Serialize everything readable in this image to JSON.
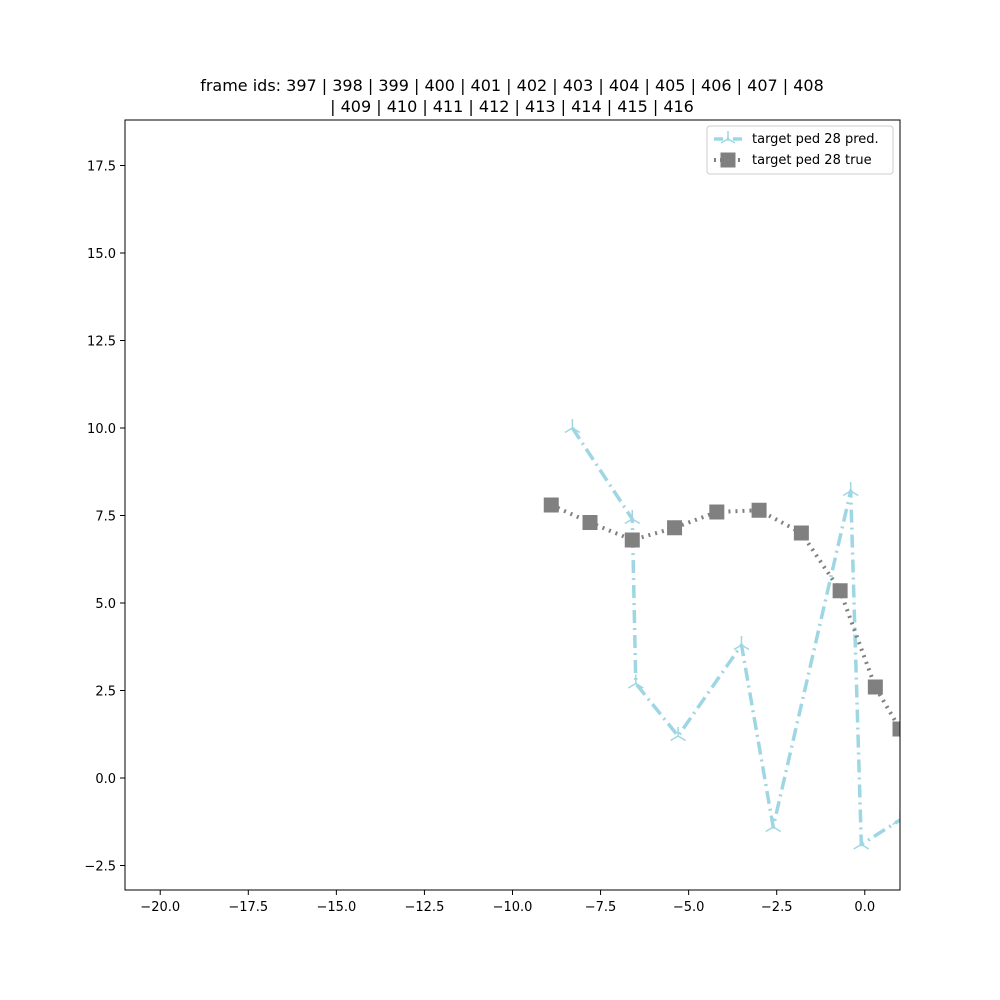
{
  "chart_data": {
    "type": "line",
    "title_lines": [
      "frame ids: 397 | 398 | 399 | 400 | 401 | 402 | 403 | 404 | 405 | 406 | 407 | 408",
      "| 409 | 410 | 411 | 412 | 413 | 414 | 415 | 416"
    ],
    "xlabel": "",
    "ylabel": "",
    "xlim": [
      -21.0,
      1.0
    ],
    "ylim": [
      -3.2,
      18.8
    ],
    "xticks": [
      -20.0,
      -17.5,
      -15.0,
      -12.5,
      -10.0,
      -7.5,
      -5.0,
      -2.5,
      0.0
    ],
    "xtick_labels": [
      "−20.0",
      "−17.5",
      "−15.0",
      "−12.5",
      "−10.0",
      "−7.5",
      "−5.0",
      "−2.5",
      "0.0"
    ],
    "yticks": [
      -2.5,
      0.0,
      2.5,
      5.0,
      7.5,
      10.0,
      12.5,
      15.0,
      17.5
    ],
    "ytick_labels": [
      "−2.5",
      "0.0",
      "2.5",
      "5.0",
      "7.5",
      "10.0",
      "12.5",
      "15.0",
      "17.5"
    ],
    "grid": false,
    "legend_position": "top-right",
    "series": [
      {
        "name": "target ped 28 pred.",
        "color": "#9ed7e3",
        "line_style": "dashdot",
        "marker": "tri-up",
        "x": [
          -8.3,
          -6.6,
          -6.5,
          -5.3,
          -3.5,
          -2.6,
          -0.4,
          -0.1,
          1.0
        ],
        "y": [
          10.0,
          7.4,
          2.7,
          1.2,
          3.8,
          -1.4,
          8.2,
          -1.9,
          -1.2
        ]
      },
      {
        "name": "target ped 28 true",
        "color": "#808080",
        "line_style": "dotted",
        "marker": "square",
        "x": [
          -8.9,
          -7.8,
          -6.6,
          -5.4,
          -4.2,
          -3.0,
          -1.8,
          -0.7,
          0.3,
          1.0
        ],
        "y": [
          7.8,
          7.3,
          6.8,
          7.15,
          7.6,
          7.65,
          7.0,
          5.35,
          2.6,
          1.4
        ]
      }
    ]
  }
}
